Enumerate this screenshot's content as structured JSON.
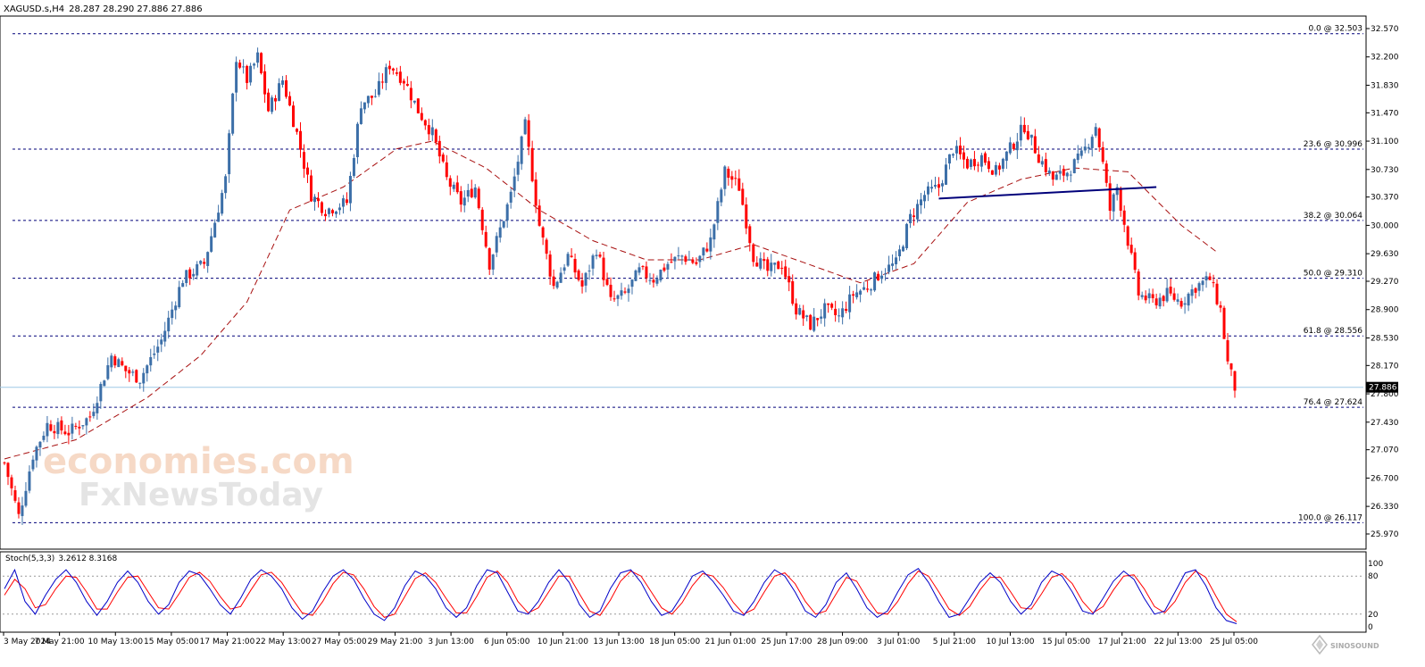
{
  "chart_header": {
    "symbol": "XAGUSD.s,H4",
    "ohlc": "28.287 28.290 27.886 27.886"
  },
  "stoch_header": {
    "label": "Stoch(5,3,3)",
    "values": "3.2612 8.3168"
  },
  "watermark": {
    "line1": "economies.com",
    "line2": "FxNewsToday",
    "corner": "SINOSOUND"
  },
  "colors": {
    "bull": "#3c6fa8",
    "bear": "#ff0000",
    "ma": "#a81010",
    "fib": "#00007a",
    "trend": "#00007a",
    "stoch_main": "#0000c8",
    "stoch_signal": "#ff0000",
    "current_price_bg": "#000000"
  },
  "chart_data": {
    "type": "candlestick",
    "current_price": "27.886",
    "current_price_value": 27.886,
    "y_ticks": [
      "32.570",
      "32.200",
      "31.830",
      "31.470",
      "31.100",
      "30.730",
      "30.370",
      "30.000",
      "29.630",
      "29.270",
      "28.900",
      "28.530",
      "28.170",
      "27.800",
      "27.430",
      "27.070",
      "26.700",
      "26.330",
      "25.970"
    ],
    "y_range": [
      25.97,
      32.57
    ],
    "x_ticks": [
      "3 May 2024",
      "7 May 21:00",
      "10 May 13:00",
      "15 May 05:00",
      "17 May 21:00",
      "22 May 13:00",
      "27 May 05:00",
      "29 May 21:00",
      "3 Jun 13:00",
      "6 Jun 05:00",
      "10 Jun 21:00",
      "13 Jun 13:00",
      "18 Jun 05:00",
      "21 Jun 01:00",
      "25 Jun 17:00",
      "28 Jun 09:00",
      "3 Jul 01:00",
      "5 Jul 21:00",
      "10 Jul 13:00",
      "15 Jul 05:00",
      "17 Jul 21:00",
      "22 Jul 13:00",
      "25 Jul 05:00"
    ],
    "fib_levels": [
      {
        "label": "0.0 @ 32.503",
        "value": 32.503
      },
      {
        "label": "23.6 @ 30.996",
        "value": 30.996
      },
      {
        "label": "38.2 @ 30.064",
        "value": 30.064
      },
      {
        "label": "50.0 @ 29.310",
        "value": 29.31
      },
      {
        "label": "61.8 @ 28.556",
        "value": 28.556
      },
      {
        "label": "76.4 @ 27.624",
        "value": 27.624
      },
      {
        "label": "100.0 @ 26.117",
        "value": 26.117
      }
    ],
    "price_path": [
      {
        "bar": 0,
        "price": 26.9
      },
      {
        "bar": 4,
        "price": 26.2
      },
      {
        "bar": 8,
        "price": 27.0
      },
      {
        "bar": 12,
        "price": 27.4
      },
      {
        "bar": 18,
        "price": 27.3
      },
      {
        "bar": 24,
        "price": 27.5
      },
      {
        "bar": 30,
        "price": 28.3
      },
      {
        "bar": 34,
        "price": 28.1
      },
      {
        "bar": 38,
        "price": 28.0
      },
      {
        "bar": 44,
        "price": 28.5
      },
      {
        "bar": 50,
        "price": 29.3
      },
      {
        "bar": 56,
        "price": 29.5
      },
      {
        "bar": 62,
        "price": 30.6
      },
      {
        "bar": 65,
        "price": 32.2
      },
      {
        "bar": 68,
        "price": 31.9
      },
      {
        "bar": 71,
        "price": 32.2
      },
      {
        "bar": 74,
        "price": 31.5
      },
      {
        "bar": 78,
        "price": 31.9
      },
      {
        "bar": 82,
        "price": 31.2
      },
      {
        "bar": 86,
        "price": 30.4
      },
      {
        "bar": 90,
        "price": 30.2
      },
      {
        "bar": 96,
        "price": 30.3
      },
      {
        "bar": 100,
        "price": 31.6
      },
      {
        "bar": 104,
        "price": 31.7
      },
      {
        "bar": 108,
        "price": 32.1
      },
      {
        "bar": 112,
        "price": 31.9
      },
      {
        "bar": 116,
        "price": 31.5
      },
      {
        "bar": 120,
        "price": 31.2
      },
      {
        "bar": 124,
        "price": 30.6
      },
      {
        "bar": 128,
        "price": 30.3
      },
      {
        "bar": 132,
        "price": 30.5
      },
      {
        "bar": 136,
        "price": 29.5
      },
      {
        "bar": 142,
        "price": 30.4
      },
      {
        "bar": 146,
        "price": 31.3
      },
      {
        "bar": 150,
        "price": 30.0
      },
      {
        "bar": 154,
        "price": 29.2
      },
      {
        "bar": 158,
        "price": 29.6
      },
      {
        "bar": 162,
        "price": 29.2
      },
      {
        "bar": 166,
        "price": 29.7
      },
      {
        "bar": 170,
        "price": 29.0
      },
      {
        "bar": 174,
        "price": 29.1
      },
      {
        "bar": 178,
        "price": 29.4
      },
      {
        "bar": 182,
        "price": 29.3
      },
      {
        "bar": 186,
        "price": 29.5
      },
      {
        "bar": 190,
        "price": 29.6
      },
      {
        "bar": 194,
        "price": 29.5
      },
      {
        "bar": 198,
        "price": 29.8
      },
      {
        "bar": 202,
        "price": 30.7
      },
      {
        "bar": 206,
        "price": 30.5
      },
      {
        "bar": 210,
        "price": 29.6
      },
      {
        "bar": 214,
        "price": 29.4
      },
      {
        "bar": 218,
        "price": 29.5
      },
      {
        "bar": 222,
        "price": 28.9
      },
      {
        "bar": 226,
        "price": 28.7
      },
      {
        "bar": 230,
        "price": 28.9
      },
      {
        "bar": 234,
        "price": 28.8
      },
      {
        "bar": 238,
        "price": 29.1
      },
      {
        "bar": 242,
        "price": 29.2
      },
      {
        "bar": 246,
        "price": 29.4
      },
      {
        "bar": 250,
        "price": 29.5
      },
      {
        "bar": 254,
        "price": 30.1
      },
      {
        "bar": 258,
        "price": 30.4
      },
      {
        "bar": 262,
        "price": 30.5
      },
      {
        "bar": 266,
        "price": 31.0
      },
      {
        "bar": 270,
        "price": 30.8
      },
      {
        "bar": 274,
        "price": 30.9
      },
      {
        "bar": 278,
        "price": 30.7
      },
      {
        "bar": 282,
        "price": 31.0
      },
      {
        "bar": 286,
        "price": 31.3
      },
      {
        "bar": 290,
        "price": 30.9
      },
      {
        "bar": 294,
        "price": 30.6
      },
      {
        "bar": 298,
        "price": 30.7
      },
      {
        "bar": 302,
        "price": 30.9
      },
      {
        "bar": 306,
        "price": 31.3
      },
      {
        "bar": 308,
        "price": 30.8
      },
      {
        "bar": 310,
        "price": 30.2
      },
      {
        "bar": 312,
        "price": 30.5
      },
      {
        "bar": 315,
        "price": 29.8
      },
      {
        "bar": 318,
        "price": 29.1
      },
      {
        "bar": 322,
        "price": 29.0
      },
      {
        "bar": 326,
        "price": 29.1
      },
      {
        "bar": 330,
        "price": 29.0
      },
      {
        "bar": 334,
        "price": 29.2
      },
      {
        "bar": 338,
        "price": 29.3
      },
      {
        "bar": 341,
        "price": 28.9
      },
      {
        "bar": 343,
        "price": 28.2
      },
      {
        "bar": 345,
        "price": 27.886
      }
    ],
    "ma_path": [
      {
        "bar": 0,
        "price": 26.95
      },
      {
        "bar": 20,
        "price": 27.2
      },
      {
        "bar": 40,
        "price": 27.75
      },
      {
        "bar": 55,
        "price": 28.3
      },
      {
        "bar": 68,
        "price": 29.0
      },
      {
        "bar": 80,
        "price": 30.2
      },
      {
        "bar": 95,
        "price": 30.5
      },
      {
        "bar": 110,
        "price": 31.0
      },
      {
        "bar": 120,
        "price": 31.1
      },
      {
        "bar": 135,
        "price": 30.75
      },
      {
        "bar": 150,
        "price": 30.2
      },
      {
        "bar": 165,
        "price": 29.8
      },
      {
        "bar": 180,
        "price": 29.55
      },
      {
        "bar": 195,
        "price": 29.55
      },
      {
        "bar": 210,
        "price": 29.75
      },
      {
        "bar": 225,
        "price": 29.5
      },
      {
        "bar": 240,
        "price": 29.25
      },
      {
        "bar": 255,
        "price": 29.5
      },
      {
        "bar": 270,
        "price": 30.3
      },
      {
        "bar": 285,
        "price": 30.6
      },
      {
        "bar": 300,
        "price": 30.75
      },
      {
        "bar": 315,
        "price": 30.7
      },
      {
        "bar": 330,
        "price": 30.0
      },
      {
        "bar": 340,
        "price": 29.65
      }
    ],
    "trendline": [
      {
        "bar": 262,
        "price": 30.35
      },
      {
        "bar": 323,
        "price": 30.5
      }
    ],
    "stochastic": {
      "levels": [
        20,
        80
      ],
      "scale_labels": [
        "100",
        "80",
        "20",
        "0"
      ],
      "main": [
        60,
        90,
        40,
        20,
        50,
        75,
        90,
        70,
        40,
        18,
        40,
        70,
        88,
        70,
        40,
        20,
        35,
        70,
        88,
        82,
        60,
        35,
        20,
        45,
        75,
        90,
        80,
        60,
        30,
        12,
        25,
        55,
        80,
        90,
        75,
        45,
        20,
        10,
        30,
        65,
        88,
        80,
        60,
        30,
        15,
        30,
        65,
        90,
        85,
        55,
        25,
        20,
        40,
        70,
        90,
        70,
        35,
        15,
        25,
        60,
        85,
        90,
        70,
        40,
        18,
        25,
        50,
        80,
        88,
        72,
        50,
        25,
        18,
        40,
        70,
        90,
        80,
        55,
        25,
        15,
        35,
        70,
        85,
        60,
        30,
        15,
        25,
        55,
        82,
        92,
        70,
        40,
        15,
        20,
        45,
        70,
        85,
        70,
        40,
        20,
        35,
        70,
        88,
        80,
        55,
        25,
        20,
        45,
        72,
        88,
        75,
        45,
        20,
        25,
        55,
        85,
        90,
        65,
        30,
        10,
        5
      ],
      "signal": [
        50,
        75,
        60,
        30,
        35,
        60,
        80,
        78,
        55,
        28,
        28,
        55,
        78,
        80,
        55,
        30,
        28,
        52,
        78,
        86,
        72,
        48,
        28,
        32,
        58,
        82,
        86,
        70,
        45,
        22,
        18,
        40,
        68,
        86,
        82,
        60,
        32,
        15,
        20,
        48,
        76,
        85,
        70,
        45,
        22,
        22,
        48,
        78,
        88,
        70,
        40,
        22,
        30,
        55,
        80,
        80,
        52,
        25,
        18,
        42,
        72,
        88,
        80,
        55,
        30,
        20,
        38,
        65,
        84,
        80,
        62,
        38,
        20,
        28,
        55,
        80,
        85,
        68,
        40,
        20,
        25,
        52,
        78,
        72,
        45,
        22,
        20,
        40,
        68,
        88,
        80,
        55,
        28,
        18,
        32,
        58,
        78,
        78,
        55,
        30,
        28,
        52,
        78,
        84,
        68,
        40,
        22,
        32,
        58,
        80,
        82,
        60,
        32,
        22,
        40,
        70,
        88,
        78,
        48,
        20,
        8
      ]
    }
  }
}
